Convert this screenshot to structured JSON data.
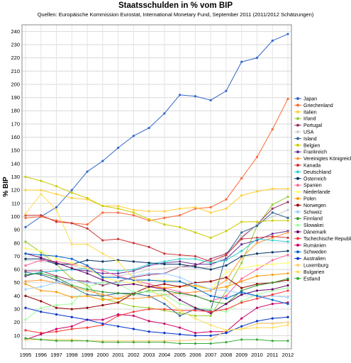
{
  "title": "Staatsschulden in % vom BIP",
  "subtitle": "Quellen: Europäische Kommission Eurostat, International Monetary Fund, September 2011 (2011/2012 Schätzungen)",
  "chart_data": {
    "type": "line",
    "title": "Staatsschulden in % vom BIP",
    "xlabel": "",
    "ylabel": "% BIP",
    "ylim": [
      0,
      245
    ],
    "y_ticks": [
      10,
      20,
      30,
      40,
      50,
      60,
      70,
      80,
      90,
      100,
      110,
      120,
      130,
      140,
      150,
      160,
      170,
      180,
      190,
      200,
      210,
      220,
      230,
      240
    ],
    "grid": true,
    "legend_position": "right",
    "categories": [
      "1995",
      "1996",
      "1997",
      "1998",
      "1999",
      "2000",
      "2001",
      "2002",
      "2003",
      "2004",
      "2005",
      "2006",
      "2007",
      "2008",
      "2009",
      "2010",
      "2011",
      "2012"
    ],
    "series": [
      {
        "name": "Japan",
        "color": "#3366cc",
        "values": [
          92,
          100,
          107,
          120,
          134,
          142,
          152,
          161,
          167,
          178,
          192,
          191,
          188,
          195,
          217,
          220,
          233,
          238
        ]
      },
      {
        "name": "Griechenland",
        "color": "#ff6633",
        "values": [
          99,
          100,
          97,
          95,
          94,
          103,
          103,
          101,
          97,
          99,
          101,
          106,
          107,
          113,
          129,
          145,
          166,
          189
        ]
      },
      {
        "name": "Italien",
        "color": "#ffcc33",
        "values": [
          120,
          120,
          117,
          114,
          113,
          108,
          108,
          105,
          104,
          104,
          106,
          107,
          103,
          106,
          116,
          119,
          121,
          121
        ]
      },
      {
        "name": "Irland",
        "color": "#99cc33",
        "values": [
          81,
          73,
          64,
          53,
          48,
          38,
          35,
          32,
          31,
          29,
          27,
          25,
          25,
          44,
          65,
          93,
          109,
          115
        ]
      },
      {
        "name": "Portugal",
        "color": "#993366",
        "values": [
          59,
          59,
          55,
          52,
          51,
          48,
          51,
          54,
          56,
          57,
          62,
          63,
          68,
          72,
          84,
          94,
          106,
          111
        ]
      },
      {
        "name": "USA",
        "color": "#cccccc",
        "values": [
          67,
          66,
          65,
          63,
          60,
          55,
          55,
          57,
          60,
          61,
          62,
          61,
          62,
          71,
          85,
          94,
          100,
          105
        ]
      },
      {
        "name": "Island",
        "color": "#336699",
        "values": [
          58,
          56,
          52,
          47,
          41,
          40,
          42,
          42,
          40,
          34,
          25,
          30,
          29,
          71,
          88,
          93,
          103,
          99
        ]
      },
      {
        "name": "Belgien",
        "color": "#cccc00",
        "values": [
          130,
          127,
          123,
          118,
          114,
          108,
          106,
          103,
          98,
          94,
          92,
          88,
          84,
          89,
          96,
          96,
          97,
          97
        ]
      },
      {
        "name": "Frankreich",
        "color": "#663399",
        "values": [
          55,
          58,
          59,
          60,
          59,
          57,
          57,
          59,
          63,
          65,
          66,
          64,
          64,
          68,
          79,
          82,
          87,
          89
        ]
      },
      {
        "name": "Vereinigtes Königreich",
        "color": "#ff9933",
        "values": [
          51,
          52,
          50,
          47,
          44,
          41,
          38,
          38,
          39,
          41,
          42,
          43,
          44,
          52,
          69,
          80,
          84,
          88
        ]
      },
      {
        "name": "Kanada",
        "color": "#cc3333",
        "values": [
          101,
          101,
          96,
          95,
          91,
          82,
          83,
          80,
          77,
          72,
          71,
          70,
          66,
          71,
          83,
          84,
          85,
          84
        ]
      },
      {
        "name": "Deutschland",
        "color": "#33cccc",
        "values": [
          56,
          58,
          59,
          60,
          61,
          60,
          59,
          60,
          64,
          66,
          68,
          68,
          65,
          67,
          74,
          83,
          82,
          81
        ]
      },
      {
        "name": "Österreich",
        "color": "#003366",
        "values": [
          68,
          68,
          64,
          64,
          67,
          66,
          67,
          66,
          65,
          64,
          64,
          62,
          60,
          63,
          70,
          72,
          73,
          74
        ]
      },
      {
        "name": "Spanien",
        "color": "#ff6699",
        "values": [
          63,
          67,
          66,
          64,
          62,
          59,
          55,
          52,
          49,
          46,
          43,
          40,
          36,
          40,
          53,
          60,
          67,
          71
        ]
      },
      {
        "name": "Niederlande",
        "color": "#ffff66",
        "values": [
          76,
          74,
          68,
          65,
          61,
          54,
          51,
          50,
          52,
          52,
          51,
          47,
          45,
          58,
          61,
          63,
          64,
          65
        ]
      },
      {
        "name": "Polen",
        "color": "#ff9900",
        "values": [
          49,
          44,
          43,
          39,
          40,
          37,
          38,
          42,
          47,
          46,
          47,
          48,
          45,
          47,
          51,
          55,
          56,
          57
        ]
      },
      {
        "name": "Norwegen",
        "color": "#990000",
        "values": [
          40,
          36,
          31,
          30,
          31,
          33,
          35,
          42,
          47,
          49,
          47,
          50,
          51,
          54,
          46,
          49,
          50,
          52
        ]
      },
      {
        "name": "Schweiz",
        "color": "#99ccff",
        "values": [
          45,
          47,
          50,
          52,
          50,
          50,
          50,
          55,
          57,
          57,
          54,
          49,
          45,
          44,
          42,
          40,
          40,
          39
        ]
      },
      {
        "name": "Finnland",
        "color": "#339933",
        "values": [
          56,
          57,
          54,
          48,
          45,
          43,
          42,
          41,
          44,
          44,
          42,
          40,
          36,
          34,
          44,
          48,
          50,
          53
        ]
      },
      {
        "name": "Slowakei",
        "color": "#99ff99",
        "values": [
          22,
          31,
          33,
          34,
          47,
          50,
          49,
          43,
          43,
          41,
          34,
          31,
          30,
          28,
          36,
          41,
          44,
          46
        ]
      },
      {
        "name": "Dänemark",
        "color": "#660066",
        "values": [
          72,
          69,
          65,
          61,
          57,
          52,
          48,
          49,
          47,
          45,
          37,
          31,
          27,
          34,
          41,
          44,
          45,
          48
        ]
      },
      {
        "name": "Tschechische Republik",
        "color": "#ff3333",
        "values": [
          14,
          12,
          13,
          15,
          16,
          18,
          25,
          28,
          30,
          30,
          29,
          29,
          28,
          30,
          35,
          38,
          41,
          44
        ]
      },
      {
        "name": "Rumänien",
        "color": "#cc0066",
        "values": [
          7,
          11,
          15,
          17,
          22,
          22,
          26,
          25,
          21,
          19,
          16,
          12,
          13,
          13,
          23,
          31,
          34,
          35
        ]
      },
      {
        "name": "Schweden",
        "color": "#0066cc",
        "values": [
          72,
          71,
          70,
          68,
          63,
          54,
          54,
          52,
          52,
          51,
          51,
          46,
          40,
          38,
          43,
          40,
          37,
          34
        ]
      },
      {
        "name": "Australien",
        "color": "#0033cc",
        "values": [
          31,
          28,
          26,
          24,
          22,
          19,
          17,
          15,
          13,
          12,
          11,
          10,
          10,
          12,
          17,
          21,
          23,
          24
        ]
      },
      {
        "name": "Luxemburg",
        "color": "#ffcc66",
        "values": [
          7,
          7,
          7,
          7,
          6,
          6,
          6,
          6,
          6,
          6,
          6,
          7,
          7,
          14,
          15,
          19,
          19,
          20
        ]
      },
      {
        "name": "Bulgarien",
        "color": "#ffdd55",
        "values": [
          102,
          117,
          105,
          79,
          79,
          72,
          66,
          53,
          45,
          38,
          29,
          23,
          18,
          14,
          15,
          16,
          16,
          18
        ]
      },
      {
        "name": "Estland",
        "color": "#33aa33",
        "values": [
          8,
          7,
          6,
          6,
          6,
          5,
          5,
          5,
          5,
          5,
          4,
          4,
          4,
          5,
          7,
          7,
          6,
          6
        ]
      }
    ]
  }
}
